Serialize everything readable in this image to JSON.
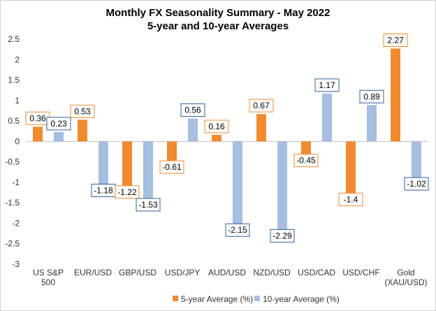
{
  "chart_data": {
    "type": "bar",
    "title": "Monthly FX Seasonality Summary - May 2022",
    "subtitle": "5-year and 10-year Averages",
    "categories": [
      [
        "US S&P",
        "500"
      ],
      [
        "EUR/USD"
      ],
      [
        "GBP/USD"
      ],
      [
        "USD/JPY"
      ],
      [
        "AUD/USD"
      ],
      [
        "NZD/USD"
      ],
      [
        "USD/CAD"
      ],
      [
        "USD/CHF"
      ],
      [
        "Gold",
        "(XAU/USD)"
      ]
    ],
    "series": [
      {
        "name": "5-year Average (%)",
        "color": "#F28B30",
        "values": [
          0.36,
          0.53,
          -1.22,
          -0.61,
          0.16,
          0.67,
          -0.45,
          -1.4,
          2.27
        ],
        "labels": [
          "0.36",
          "0.53",
          "-1.22",
          "-0.61",
          "0.16",
          "0.67",
          "-0.45",
          "-1.4",
          "2.27"
        ]
      },
      {
        "name": "10-year Average (%)",
        "color": "#A6BEDF",
        "values": [
          0.23,
          -1.18,
          -1.53,
          0.56,
          -2.15,
          -2.29,
          1.17,
          0.89,
          -1.02
        ],
        "labels": [
          "0.23",
          "-1.18",
          "-1.53",
          "0.56",
          "-2.15",
          "-2.29",
          "1.17",
          "0.89",
          "-1.02"
        ]
      }
    ],
    "ylim": [
      -3,
      2.5
    ],
    "yticks": [
      "-3",
      "-2.5",
      "-2",
      "-1.5",
      "-1",
      "-0.5",
      "0",
      "0.5",
      "1",
      "1.5",
      "2",
      "2.5"
    ],
    "xlabel": "",
    "ylabel": "",
    "grid": false,
    "legend_position": "bottom",
    "label_box_colors": [
      "#F28B30",
      "#2E5F9E"
    ]
  }
}
